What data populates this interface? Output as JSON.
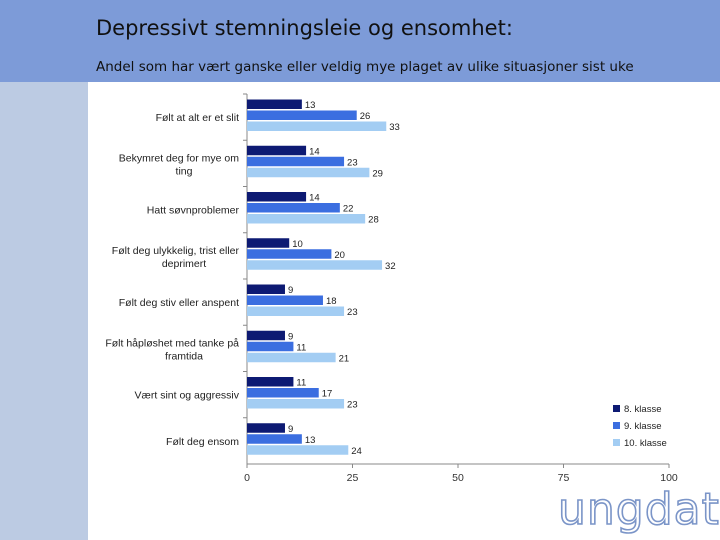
{
  "header": {
    "title": "Depressivt stemningsleie og ensomhet:",
    "subtitle": "Andel som har vært ganske eller veldig mye plaget av ulike situasjoner sist uke"
  },
  "logo": {
    "text": "ungdata"
  },
  "colors": {
    "header_bg": "#7d9bd8",
    "sidebar_bg": "#bccbe3",
    "series": [
      "#0d1a73",
      "#3b6ee0",
      "#a3cdf3"
    ]
  },
  "chart_data": {
    "type": "bar",
    "orientation": "horizontal",
    "categories": [
      [
        "Følt at alt er et slit"
      ],
      [
        "Bekymret deg for mye om",
        "ting"
      ],
      [
        "Hatt søvnproblemer"
      ],
      [
        "Følt deg ulykkelig, trist eller",
        "deprimert"
      ],
      [
        "Følt deg stiv eller anspent"
      ],
      [
        "Følt håpløshet med tanke på",
        "framtida"
      ],
      [
        "Vært sint og aggressiv"
      ],
      [
        "Følt deg ensom"
      ]
    ],
    "series": [
      {
        "name": "8. klasse",
        "values": [
          13,
          14,
          14,
          10,
          9,
          9,
          11,
          9
        ]
      },
      {
        "name": "9. klasse",
        "values": [
          26,
          23,
          22,
          20,
          18,
          11,
          17,
          13
        ]
      },
      {
        "name": "10. klasse",
        "values": [
          33,
          29,
          28,
          32,
          23,
          21,
          23,
          24
        ]
      }
    ],
    "xlim": [
      0,
      100
    ],
    "xticks": [
      0,
      25,
      50,
      75,
      100
    ],
    "legend_position": "bottom-right"
  }
}
